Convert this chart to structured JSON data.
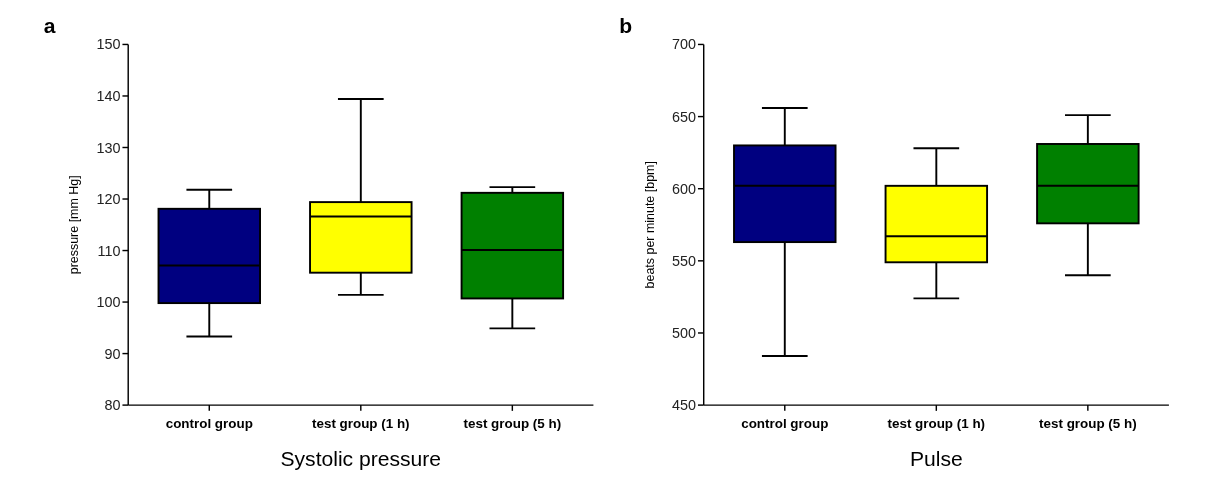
{
  "chart_data": [
    {
      "type": "box",
      "xlabel": "Systolic pressure",
      "ylabel": "pressure [mm Hg]",
      "annotations": [
        "a"
      ],
      "categories": [
        "control group",
        "test group (1 h)",
        "test group (5 h)"
      ],
      "colors": [
        "#000080",
        "#ffff00",
        "#008000"
      ],
      "boxes": [
        {
          "low": 93.3,
          "q1": 99.8,
          "median": 107.1,
          "q3": 118.1,
          "high": 121.8
        },
        {
          "low": 101.4,
          "q1": 105.7,
          "median": 116.6,
          "q3": 119.4,
          "high": 139.4
        },
        {
          "low": 94.9,
          "q1": 100.7,
          "median": 110.1,
          "q3": 121.2,
          "high": 122.3
        }
      ],
      "ylim": [
        80,
        150
      ],
      "yticks": [
        80,
        90,
        100,
        110,
        120,
        130,
        140,
        150
      ]
    },
    {
      "type": "box",
      "xlabel": "Pulse",
      "ylabel": "beats per minute [bpm]",
      "annotations": [
        "b"
      ],
      "categories": [
        "control group",
        "test group (1 h)",
        "test group (5 h)"
      ],
      "colors": [
        "#000080",
        "#ffff00",
        "#008000"
      ],
      "boxes": [
        {
          "low": 484,
          "q1": 563,
          "median": 602,
          "q3": 630,
          "high": 656
        },
        {
          "low": 524,
          "q1": 549,
          "median": 567,
          "q3": 602,
          "high": 628
        },
        {
          "low": 540,
          "q1": 576,
          "median": 602,
          "q3": 631,
          "high": 651
        }
      ],
      "ylim": [
        450,
        700
      ],
      "yticks": [
        450,
        500,
        550,
        600,
        650,
        700
      ]
    }
  ]
}
